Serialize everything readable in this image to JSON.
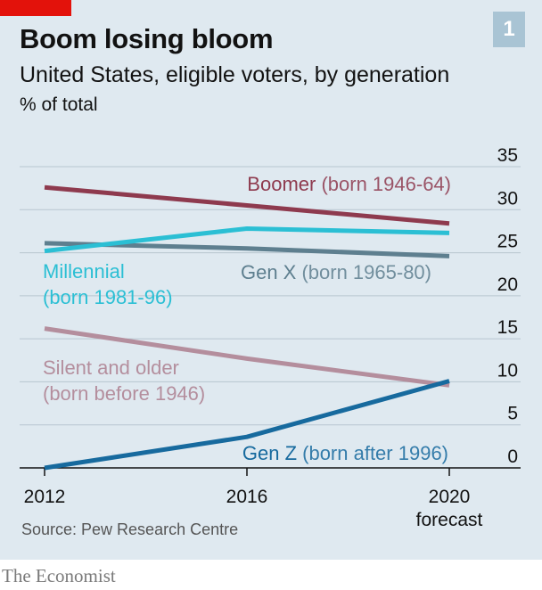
{
  "header": {
    "title": "Boom losing bloom",
    "subtitle": "United States, eligible voters, by generation",
    "unit": "% of total",
    "chart_number": "1"
  },
  "footer": {
    "source": "Source: Pew Research Centre",
    "brand": "The Economist"
  },
  "colors": {
    "boomer": "#8e3a4e",
    "millennial": "#2bbfd4",
    "genx": "#5e7f8f",
    "silent": "#b48e9d",
    "genz": "#176a9e",
    "accent": "#e3120b"
  },
  "chart_data": {
    "type": "line",
    "title": "Boom losing bloom",
    "subtitle": "United States, eligible voters, by generation",
    "ylabel": "% of total",
    "ylim": [
      0,
      35
    ],
    "yticks": [
      "0",
      "5",
      "10",
      "15",
      "20",
      "25",
      "30",
      "35"
    ],
    "x": [
      2012,
      2016,
      2020
    ],
    "xticks": [
      {
        "label": "2012",
        "sublabel": ""
      },
      {
        "label": "2016",
        "sublabel": ""
      },
      {
        "label": "2020",
        "sublabel": "forecast"
      }
    ],
    "grid": true,
    "series": [
      {
        "key": "boomer",
        "name": "Boomer",
        "detail": " (born 1946-64)",
        "values": [
          32.6,
          30.5,
          28.4
        ]
      },
      {
        "key": "millennial",
        "name": "Millennial",
        "detail": "(born 1981-96)",
        "values": [
          25.2,
          27.8,
          27.3
        ]
      },
      {
        "key": "genx",
        "name": "Gen X",
        "detail": " (born 1965-80)",
        "values": [
          26.1,
          25.5,
          24.6
        ]
      },
      {
        "key": "silent",
        "name": "Silent and older",
        "detail": "(born before 1946)",
        "values": [
          16.2,
          12.7,
          9.6
        ]
      },
      {
        "key": "genz",
        "name": "Gen Z",
        "detail": " (born after 1996)",
        "values": [
          0.0,
          3.6,
          10.1
        ]
      }
    ]
  }
}
